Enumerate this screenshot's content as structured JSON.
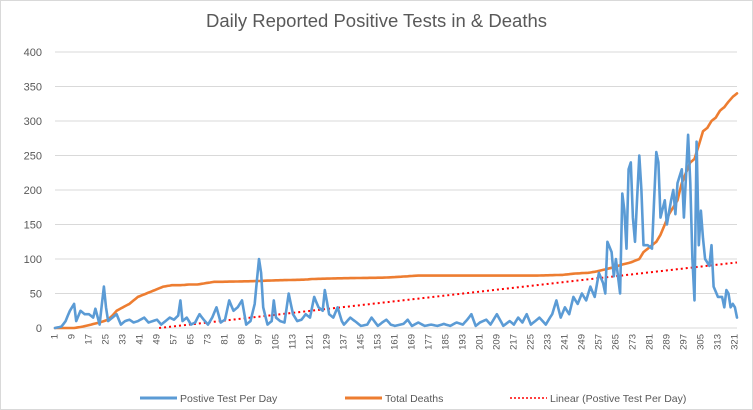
{
  "chart_data": {
    "type": "line",
    "title": "Daily Reported Positive Tests in & Deaths",
    "xlabel": "",
    "ylabel": "",
    "ylim": [
      0,
      400
    ],
    "yticks": [
      0,
      50,
      100,
      150,
      200,
      250,
      300,
      350,
      400
    ],
    "xlim": [
      1,
      322
    ],
    "xticks": [
      1,
      9,
      17,
      25,
      33,
      41,
      49,
      57,
      65,
      73,
      81,
      89,
      97,
      105,
      113,
      121,
      129,
      137,
      145,
      153,
      161,
      169,
      177,
      185,
      193,
      201,
      209,
      217,
      225,
      233,
      241,
      249,
      257,
      265,
      273,
      281,
      289,
      297,
      305,
      313,
      321
    ],
    "grid": true,
    "legend_position": "bottom",
    "series": [
      {
        "name": "Postive Test Per Day",
        "color": "#5b9bd5",
        "style": "solid",
        "points": [
          [
            1,
            0
          ],
          [
            4,
            2
          ],
          [
            6,
            10
          ],
          [
            8,
            25
          ],
          [
            10,
            35
          ],
          [
            11,
            10
          ],
          [
            13,
            25
          ],
          [
            15,
            20
          ],
          [
            17,
            20
          ],
          [
            19,
            15
          ],
          [
            20,
            28
          ],
          [
            22,
            5
          ],
          [
            24,
            60
          ],
          [
            25,
            30
          ],
          [
            26,
            10
          ],
          [
            28,
            15
          ],
          [
            30,
            20
          ],
          [
            32,
            5
          ],
          [
            34,
            10
          ],
          [
            36,
            12
          ],
          [
            38,
            8
          ],
          [
            40,
            10
          ],
          [
            43,
            15
          ],
          [
            45,
            8
          ],
          [
            47,
            10
          ],
          [
            49,
            12
          ],
          [
            51,
            5
          ],
          [
            53,
            10
          ],
          [
            55,
            15
          ],
          [
            57,
            12
          ],
          [
            59,
            18
          ],
          [
            60,
            40
          ],
          [
            61,
            10
          ],
          [
            63,
            15
          ],
          [
            65,
            5
          ],
          [
            67,
            8
          ],
          [
            69,
            20
          ],
          [
            71,
            12
          ],
          [
            73,
            5
          ],
          [
            75,
            15
          ],
          [
            77,
            30
          ],
          [
            79,
            8
          ],
          [
            81,
            12
          ],
          [
            83,
            40
          ],
          [
            85,
            25
          ],
          [
            87,
            30
          ],
          [
            89,
            40
          ],
          [
            91,
            5
          ],
          [
            93,
            10
          ],
          [
            95,
            35
          ],
          [
            97,
            100
          ],
          [
            98,
            80
          ],
          [
            99,
            30
          ],
          [
            101,
            5
          ],
          [
            103,
            10
          ],
          [
            104,
            40
          ],
          [
            105,
            15
          ],
          [
            107,
            10
          ],
          [
            109,
            8
          ],
          [
            111,
            50
          ],
          [
            113,
            20
          ],
          [
            115,
            10
          ],
          [
            117,
            12
          ],
          [
            119,
            20
          ],
          [
            121,
            15
          ],
          [
            123,
            45
          ],
          [
            125,
            30
          ],
          [
            127,
            25
          ],
          [
            128,
            55
          ],
          [
            130,
            20
          ],
          [
            132,
            15
          ],
          [
            134,
            30
          ],
          [
            136,
            10
          ],
          [
            137,
            5
          ],
          [
            140,
            15
          ],
          [
            143,
            8
          ],
          [
            145,
            3
          ],
          [
            148,
            5
          ],
          [
            150,
            15
          ],
          [
            153,
            3
          ],
          [
            155,
            8
          ],
          [
            157,
            12
          ],
          [
            159,
            5
          ],
          [
            161,
            3
          ],
          [
            165,
            6
          ],
          [
            167,
            12
          ],
          [
            169,
            3
          ],
          [
            172,
            8
          ],
          [
            175,
            3
          ],
          [
            178,
            5
          ],
          [
            181,
            3
          ],
          [
            184,
            6
          ],
          [
            187,
            3
          ],
          [
            190,
            8
          ],
          [
            193,
            5
          ],
          [
            195,
            12
          ],
          [
            197,
            20
          ],
          [
            199,
            3
          ],
          [
            201,
            8
          ],
          [
            204,
            12
          ],
          [
            206,
            5
          ],
          [
            209,
            20
          ],
          [
            212,
            3
          ],
          [
            215,
            10
          ],
          [
            217,
            5
          ],
          [
            219,
            15
          ],
          [
            221,
            8
          ],
          [
            223,
            20
          ],
          [
            225,
            5
          ],
          [
            227,
            10
          ],
          [
            229,
            15
          ],
          [
            232,
            5
          ],
          [
            235,
            20
          ],
          [
            237,
            40
          ],
          [
            239,
            15
          ],
          [
            241,
            30
          ],
          [
            243,
            20
          ],
          [
            245,
            45
          ],
          [
            247,
            35
          ],
          [
            249,
            50
          ],
          [
            251,
            40
          ],
          [
            253,
            60
          ],
          [
            255,
            45
          ],
          [
            257,
            80
          ],
          [
            259,
            65
          ],
          [
            260,
            50
          ],
          [
            261,
            125
          ],
          [
            263,
            110
          ],
          [
            264,
            75
          ],
          [
            265,
            100
          ],
          [
            267,
            50
          ],
          [
            268,
            195
          ],
          [
            269,
            170
          ],
          [
            270,
            115
          ],
          [
            271,
            230
          ],
          [
            272,
            240
          ],
          [
            273,
            160
          ],
          [
            274,
            125
          ],
          [
            276,
            250
          ],
          [
            277,
            200
          ],
          [
            278,
            120
          ],
          [
            280,
            120
          ],
          [
            282,
            115
          ],
          [
            284,
            255
          ],
          [
            285,
            240
          ],
          [
            286,
            160
          ],
          [
            288,
            185
          ],
          [
            289,
            150
          ],
          [
            291,
            185
          ],
          [
            292,
            200
          ],
          [
            293,
            165
          ],
          [
            294,
            210
          ],
          [
            296,
            230
          ],
          [
            297,
            160
          ],
          [
            299,
            280
          ],
          [
            300,
            210
          ],
          [
            301,
            100
          ],
          [
            302,
            40
          ],
          [
            303,
            270
          ],
          [
            304,
            120
          ],
          [
            305,
            170
          ],
          [
            306,
            130
          ],
          [
            307,
            100
          ],
          [
            309,
            90
          ],
          [
            310,
            120
          ],
          [
            311,
            60
          ],
          [
            313,
            45
          ],
          [
            315,
            45
          ],
          [
            316,
            30
          ],
          [
            317,
            55
          ],
          [
            318,
            50
          ],
          [
            319,
            30
          ],
          [
            320,
            35
          ],
          [
            321,
            30
          ],
          [
            322,
            15
          ]
        ]
      },
      {
        "name": "Total Deaths",
        "color": "#ed7d31",
        "style": "solid",
        "points": [
          [
            1,
            0
          ],
          [
            10,
            0
          ],
          [
            14,
            2
          ],
          [
            18,
            5
          ],
          [
            22,
            8
          ],
          [
            26,
            12
          ],
          [
            28,
            18
          ],
          [
            30,
            25
          ],
          [
            33,
            30
          ],
          [
            36,
            35
          ],
          [
            40,
            45
          ],
          [
            44,
            50
          ],
          [
            48,
            55
          ],
          [
            52,
            60
          ],
          [
            56,
            62
          ],
          [
            60,
            62
          ],
          [
            64,
            63
          ],
          [
            68,
            63
          ],
          [
            72,
            65
          ],
          [
            76,
            67
          ],
          [
            80,
            67
          ],
          [
            96,
            68
          ],
          [
            104,
            69
          ],
          [
            118,
            70
          ],
          [
            122,
            71
          ],
          [
            134,
            72
          ],
          [
            156,
            73
          ],
          [
            162,
            74
          ],
          [
            172,
            76
          ],
          [
            228,
            76
          ],
          [
            240,
            77
          ],
          [
            246,
            79
          ],
          [
            252,
            80
          ],
          [
            256,
            82
          ],
          [
            260,
            85
          ],
          [
            264,
            88
          ],
          [
            268,
            92
          ],
          [
            272,
            95
          ],
          [
            276,
            100
          ],
          [
            278,
            110
          ],
          [
            280,
            115
          ],
          [
            282,
            120
          ],
          [
            284,
            125
          ],
          [
            286,
            135
          ],
          [
            288,
            150
          ],
          [
            290,
            165
          ],
          [
            292,
            175
          ],
          [
            294,
            185
          ],
          [
            296,
            210
          ],
          [
            298,
            225
          ],
          [
            300,
            240
          ],
          [
            302,
            245
          ],
          [
            304,
            265
          ],
          [
            306,
            285
          ],
          [
            308,
            290
          ],
          [
            310,
            300
          ],
          [
            312,
            305
          ],
          [
            314,
            315
          ],
          [
            316,
            320
          ],
          [
            318,
            328
          ],
          [
            320,
            335
          ],
          [
            322,
            340
          ]
        ]
      },
      {
        "name": "Linear (Postive Test Per Day)",
        "color": "#ff0000",
        "style": "dotted",
        "trendline_from": [
          50,
          0
        ],
        "trendline_to": [
          322,
          95
        ]
      }
    ]
  }
}
